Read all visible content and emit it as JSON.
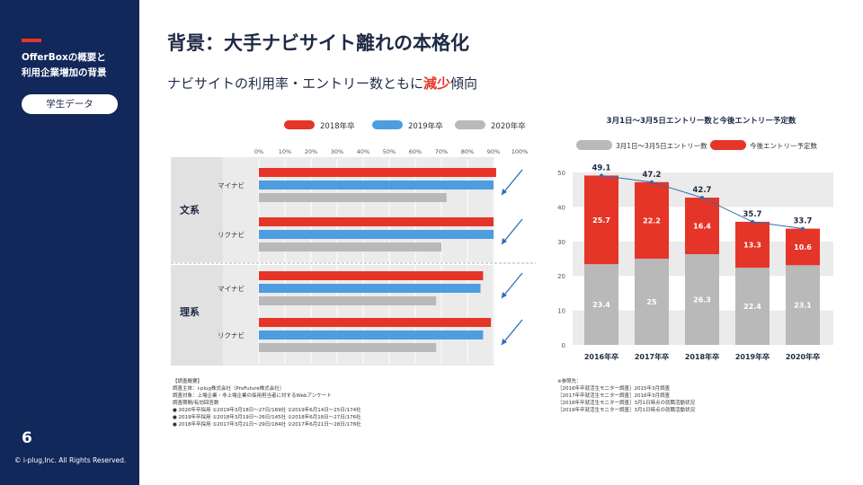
{
  "sidebar": {
    "section_title": "OfferBoxの概要と\n利用企業増加の背景",
    "badge": "学生データ",
    "page_number": "6",
    "copyright": "© i-plug,Inc. All Rights Reserved."
  },
  "header": {
    "title": "背景：大手ナビサイト離れの本格化",
    "subtitle_before": "ナビサイトの利用率・エントリー数ともに",
    "subtitle_highlight": "減少",
    "subtitle_after": "傾向"
  },
  "colors": {
    "navy": "#12275a",
    "red": "#e53528",
    "blue": "#4d9de0",
    "gray": "#b9b9b9",
    "band": "#ebebeb",
    "arrow": "#2f6db5"
  },
  "chart_data": [
    {
      "type": "bar",
      "orientation": "horizontal",
      "legend": [
        "2018年卒",
        "2019年卒",
        "2020年卒"
      ],
      "legend_position": "top",
      "x_ticks": [
        "0%",
        "10%",
        "20%",
        "30%",
        "40%",
        "50%",
        "60%",
        "70%",
        "80%",
        "90%",
        "100%"
      ],
      "xlim": [
        0,
        100
      ],
      "groups": [
        {
          "label": "文系",
          "rows": [
            {
              "label": "マイナビ",
              "values": [
                91,
                90,
                72
              ]
            },
            {
              "label": "リクナビ",
              "values": [
                90,
                90,
                70
              ]
            }
          ]
        },
        {
          "label": "理系",
          "rows": [
            {
              "label": "マイナビ",
              "values": [
                86,
                85,
                68
              ]
            },
            {
              "label": "リクナビ",
              "values": [
                89,
                86,
                68
              ]
            }
          ]
        }
      ]
    },
    {
      "type": "bar",
      "stacked": true,
      "title": "3月1日～3月5日エントリー数と今後エントリー予定数",
      "legend": [
        "3月1日～3月5日エントリー数",
        "今後エントリー予定数"
      ],
      "legend_position": "top",
      "categories": [
        "2016年卒",
        "2017年卒",
        "2018年卒",
        "2019年卒",
        "2020年卒"
      ],
      "series": [
        {
          "name": "3月1日～3月5日エントリー数",
          "values": [
            23.4,
            25,
            26.3,
            22.4,
            23.1
          ]
        },
        {
          "name": "今後エントリー予定数",
          "values": [
            25.7,
            22.2,
            16.4,
            13.3,
            10.6
          ]
        }
      ],
      "totals": [
        49.1,
        47.2,
        42.7,
        35.7,
        33.7
      ],
      "y_ticks": [
        "0",
        "10",
        "20",
        "30",
        "40",
        "50"
      ],
      "ylim": [
        0,
        50
      ]
    }
  ],
  "notes_left": [
    "【調査概要】",
    "調査主体：i-plug株式会社（ProFuture株式会社）",
    "調査対象：上場企業・非上場企業の採用担当者に対するWebアンケート",
    "調査期間/有効回答数",
    "● 2020年卒採用 ①2019年3月18日～27日/169社 ②2019年6月14日～25日/174社",
    "● 2019年卒採用 ①2018年3月19日～26日/145社 ②2018年6月18日～27日/176社",
    "● 2018年卒採用 ①2017年3月21日～29日/184社 ②2017年6月21日～28日/178社"
  ],
  "notes_right": [
    "※参照先：",
    "［2016年卒就活生モニター調査］2015年3月調査",
    "［2017年卒就活生モニター調査］2016年3月調査",
    "［2018年卒就活生モニター調査］3月1日時点の就職活動状況",
    "［2019年卒就活生モニター調査］3月1日時点の就職活動状況"
  ]
}
